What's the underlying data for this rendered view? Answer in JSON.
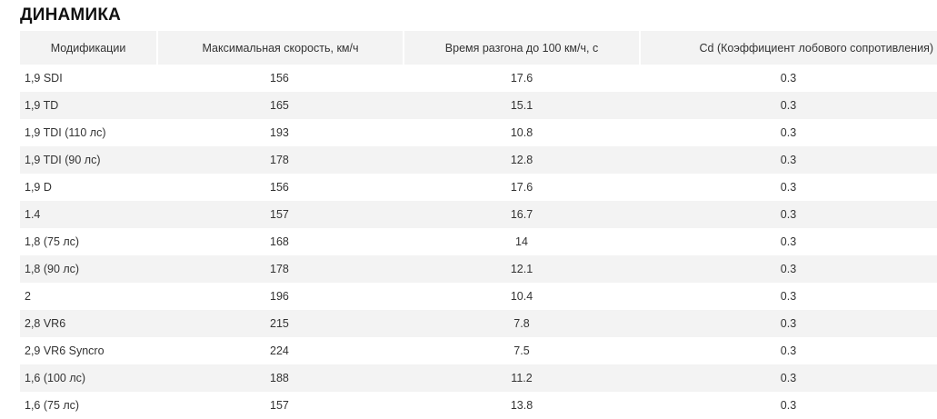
{
  "title": "ДИНАМИКА",
  "table": {
    "headers": [
      "Модификации",
      "Максимальная скорость, км/ч",
      "Время разгона до 100 км/ч, с",
      "Cd (Коэффициент лобового сопротивления)"
    ],
    "rows": [
      {
        "name": "1,9 SDI",
        "speed": "156",
        "accel": "17.6",
        "cd": "0.3"
      },
      {
        "name": "1,9 TD",
        "speed": "165",
        "accel": "15.1",
        "cd": "0.3"
      },
      {
        "name": "1,9 TDI (110 лс)",
        "speed": "193",
        "accel": "10.8",
        "cd": "0.3"
      },
      {
        "name": "1,9 TDI (90 лс)",
        "speed": "178",
        "accel": "12.8",
        "cd": "0.3"
      },
      {
        "name": "1,9 D",
        "speed": "156",
        "accel": "17.6",
        "cd": "0.3"
      },
      {
        "name": "1.4",
        "speed": "157",
        "accel": "16.7",
        "cd": "0.3"
      },
      {
        "name": "1,8 (75 лс)",
        "speed": "168",
        "accel": "14",
        "cd": "0.3"
      },
      {
        "name": "1,8 (90 лс)",
        "speed": "178",
        "accel": "12.1",
        "cd": "0.3"
      },
      {
        "name": "2",
        "speed": "196",
        "accel": "10.4",
        "cd": "0.3"
      },
      {
        "name": "2,8 VR6",
        "speed": "215",
        "accel": "7.8",
        "cd": "0.3"
      },
      {
        "name": "2,9 VR6 Syncro",
        "speed": "224",
        "accel": "7.5",
        "cd": "0.3"
      },
      {
        "name": "1,6 (100 лс)",
        "speed": "188",
        "accel": "11.2",
        "cd": "0.3"
      },
      {
        "name": "1,6 (75 лс)",
        "speed": "157",
        "accel": "13.8",
        "cd": "0.3"
      }
    ]
  }
}
